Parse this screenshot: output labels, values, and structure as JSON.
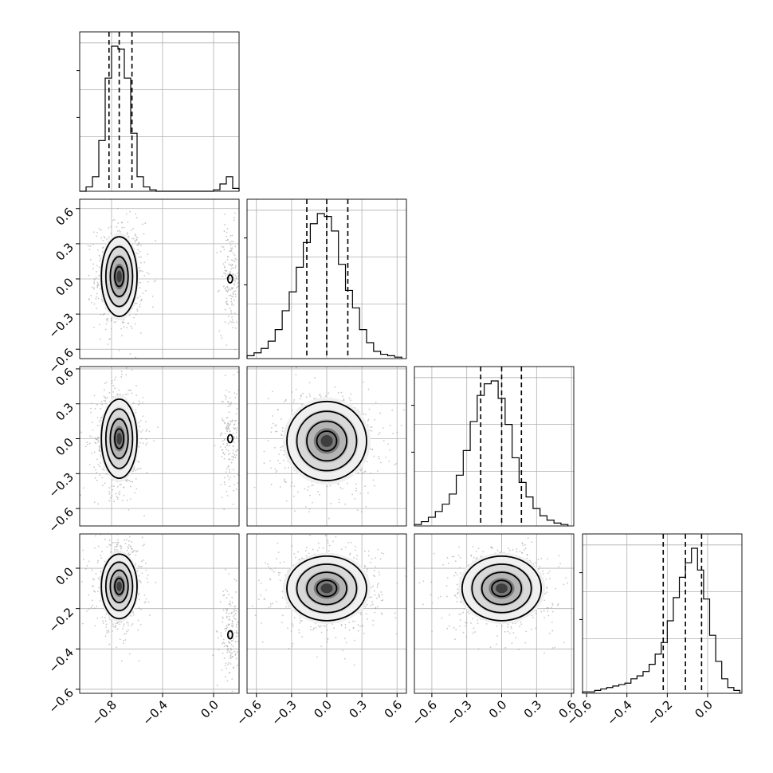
{
  "chart_data": {
    "type": "corner",
    "parameters": 4,
    "grid": true,
    "tick_labels": {
      "p0": [
        "−0.8",
        "−0.4",
        "0.0"
      ],
      "p1": [
        "−0.6",
        "−0.3",
        "0.0",
        "0.3",
        "0.6"
      ],
      "p2": [
        "−0.6",
        "−0.3",
        "0.0",
        "0.3",
        "0.6"
      ],
      "p3": [
        "−0.6",
        "−0.4",
        "−0.2",
        "0.0"
      ]
    },
    "ranges": {
      "p0": [
        -1.05,
        0.2
      ],
      "p1": [
        -0.68,
        0.68
      ],
      "p2": [
        -0.75,
        0.62
      ],
      "p3": [
        -0.62,
        0.17
      ]
    },
    "marginals": [
      {
        "param": "p0",
        "bin_edges": [
          -1.05,
          -1.0,
          -0.95,
          -0.9,
          -0.85,
          -0.8,
          -0.75,
          -0.7,
          -0.65,
          -0.6,
          -0.55,
          -0.5,
          -0.45,
          -0.4,
          -0.35,
          -0.3,
          -0.25,
          -0.2,
          -0.15,
          -0.1,
          -0.05,
          0.0,
          0.05,
          0.1,
          0.15,
          0.2
        ],
        "counts": [
          0,
          0.03,
          0.1,
          0.35,
          0.78,
          1.0,
          0.98,
          0.78,
          0.4,
          0.1,
          0.03,
          0.01,
          0,
          0,
          0,
          0,
          0,
          0,
          0,
          0,
          0,
          0.01,
          0.05,
          0.1,
          0.02
        ],
        "quantiles": [
          -0.82,
          -0.74,
          -0.64
        ]
      },
      {
        "param": "p1",
        "bin_edges": [
          -0.68,
          -0.62,
          -0.56,
          -0.5,
          -0.44,
          -0.38,
          -0.32,
          -0.26,
          -0.2,
          -0.14,
          -0.08,
          -0.02,
          0.04,
          0.1,
          0.16,
          0.22,
          0.28,
          0.34,
          0.4,
          0.46,
          0.52,
          0.58,
          0.64
        ],
        "counts": [
          0.02,
          0.04,
          0.07,
          0.12,
          0.2,
          0.33,
          0.46,
          0.63,
          0.8,
          0.93,
          1.0,
          0.98,
          0.88,
          0.65,
          0.47,
          0.35,
          0.2,
          0.11,
          0.05,
          0.03,
          0.02,
          0.01
        ],
        "quantiles": [
          -0.17,
          0.0,
          0.18
        ]
      },
      {
        "param": "p2",
        "bin_edges": [
          -0.75,
          -0.69,
          -0.63,
          -0.57,
          -0.51,
          -0.45,
          -0.39,
          -0.33,
          -0.27,
          -0.21,
          -0.15,
          -0.09,
          -0.03,
          0.03,
          0.09,
          0.15,
          0.21,
          0.27,
          0.33,
          0.39,
          0.45,
          0.51,
          0.57
        ],
        "counts": [
          0.01,
          0.03,
          0.06,
          0.1,
          0.15,
          0.22,
          0.35,
          0.52,
          0.72,
          0.9,
          0.98,
          1.0,
          0.88,
          0.7,
          0.47,
          0.3,
          0.2,
          0.12,
          0.07,
          0.04,
          0.02,
          0.01
        ],
        "quantiles": [
          -0.18,
          0.0,
          0.17
        ]
      },
      {
        "param": "p3",
        "bin_edges": [
          -0.62,
          -0.59,
          -0.56,
          -0.53,
          -0.5,
          -0.47,
          -0.44,
          -0.41,
          -0.38,
          -0.35,
          -0.32,
          -0.29,
          -0.26,
          -0.23,
          -0.2,
          -0.17,
          -0.14,
          -0.11,
          -0.08,
          -0.05,
          -0.02,
          0.01,
          0.04,
          0.07,
          0.1,
          0.13,
          0.16
        ],
        "counts": [
          0.01,
          0.01,
          0.02,
          0.03,
          0.04,
          0.05,
          0.06,
          0.07,
          0.1,
          0.12,
          0.15,
          0.2,
          0.27,
          0.35,
          0.5,
          0.66,
          0.8,
          0.9,
          1.0,
          0.85,
          0.65,
          0.4,
          0.22,
          0.1,
          0.04,
          0.02
        ],
        "quantiles": [
          -0.22,
          -0.11,
          -0.03
        ]
      }
    ],
    "joint_2d": [
      {
        "x": "p0",
        "y": "p1",
        "main_mode": {
          "x": -0.74,
          "y": 0.02,
          "sx": 0.07,
          "sy": 0.17
        },
        "secondary_mode": {
          "x": 0.13,
          "y": 0.0,
          "sx": 0.03,
          "sy": 0.17
        }
      },
      {
        "x": "p0",
        "y": "p2",
        "main_mode": {
          "x": -0.74,
          "y": 0.0,
          "sx": 0.07,
          "sy": 0.17
        },
        "secondary_mode": {
          "x": 0.13,
          "y": 0.0,
          "sx": 0.03,
          "sy": 0.17
        }
      },
      {
        "x": "p1",
        "y": "p2",
        "main_mode": {
          "x": 0.0,
          "y": -0.02,
          "sx": 0.17,
          "sy": 0.17
        }
      },
      {
        "x": "p0",
        "y": "p3",
        "main_mode": {
          "x": -0.74,
          "y": -0.09,
          "sx": 0.07,
          "sy": 0.08
        },
        "secondary_mode": {
          "x": 0.13,
          "y": -0.33,
          "sx": 0.03,
          "sy": 0.08
        }
      },
      {
        "x": "p1",
        "y": "p3",
        "main_mode": {
          "x": 0.0,
          "y": -0.1,
          "sx": 0.17,
          "sy": 0.08
        }
      },
      {
        "x": "p2",
        "y": "p3",
        "main_mode": {
          "x": 0.0,
          "y": -0.1,
          "sx": 0.17,
          "sy": 0.08
        }
      }
    ],
    "contour_levels_sigma": [
      0.5,
      1.0,
      1.5,
      2.0
    ],
    "color": "#000000",
    "point_color": "#9a9a9a",
    "grid_color": "#b0b0b0"
  }
}
